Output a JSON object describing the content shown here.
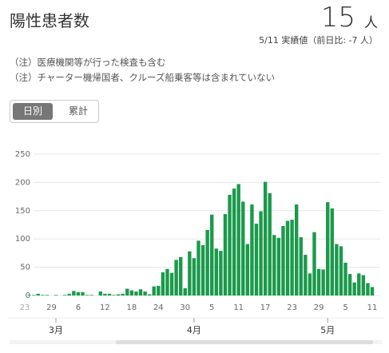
{
  "header": {
    "title": "陽性患者数",
    "value": 15,
    "unit": "人",
    "date_note": "5/11 実績値（前日比: -7 人）"
  },
  "notes": [
    "（注）医療機関等が行った検査も含む",
    "（注）チャーター機帰国者、クルーズ船乗客等は含まれていない"
  ],
  "toggle": [
    "日別",
    "累計"
  ],
  "chart_data": {
    "type": "bar",
    "color": "#1a9a4b",
    "grid": true,
    "ylim": [
      0,
      250
    ],
    "yticks": [
      0,
      50,
      100,
      150,
      200,
      250
    ],
    "categories": [
      "23",
      null,
      null,
      null,
      null,
      null,
      "29",
      null,
      null,
      null,
      null,
      null,
      "6",
      null,
      null,
      null,
      null,
      null,
      "12",
      null,
      null,
      null,
      null,
      null,
      "18",
      null,
      null,
      null,
      null,
      null,
      "24",
      null,
      null,
      null,
      null,
      null,
      "30",
      null,
      null,
      null,
      null,
      null,
      "5",
      null,
      null,
      null,
      null,
      null,
      "11",
      null,
      null,
      null,
      null,
      null,
      "17",
      null,
      null,
      null,
      null,
      null,
      "23",
      null,
      null,
      null,
      null,
      null,
      "29",
      null,
      null,
      null,
      null,
      null,
      "5",
      null,
      null,
      null,
      null,
      null,
      "11"
    ],
    "months": [
      "3月",
      "4月",
      "5月"
    ],
    "values": [
      0,
      1,
      1,
      3,
      1,
      1,
      0,
      1,
      0,
      1,
      3,
      8,
      6,
      6,
      1,
      1,
      0,
      7,
      3,
      3,
      1,
      2,
      3,
      12,
      9,
      7,
      11,
      7,
      2,
      16,
      17,
      41,
      47,
      40,
      63,
      68,
      13,
      78,
      66,
      97,
      89,
      116,
      143,
      83,
      79,
      144,
      178,
      189,
      197,
      166,
      91,
      161,
      127,
      149,
      201,
      181,
      107,
      102,
      123,
      132,
      134,
      161,
      103,
      72,
      39,
      112,
      47,
      46,
      165,
      154,
      91,
      87,
      58,
      38,
      23,
      39,
      36,
      22,
      15
    ]
  }
}
